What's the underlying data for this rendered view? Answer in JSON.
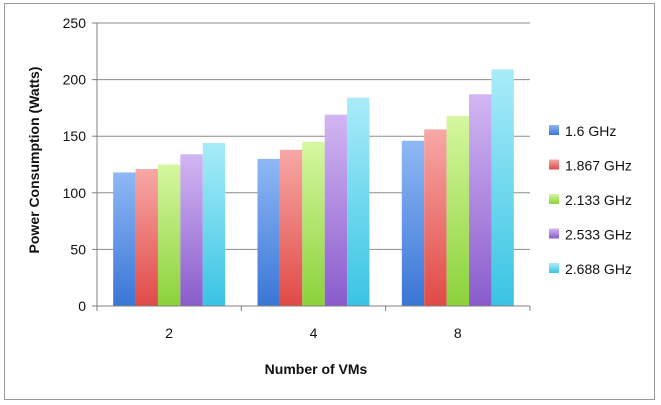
{
  "chart_data": {
    "type": "bar",
    "categories": [
      "2",
      "4",
      "8"
    ],
    "series": [
      {
        "name": "1.6 GHz",
        "values": [
          118,
          130,
          146
        ]
      },
      {
        "name": "1.867 GHz",
        "values": [
          121,
          138,
          156
        ]
      },
      {
        "name": "2.133 GHz",
        "values": [
          125,
          145,
          168
        ]
      },
      {
        "name": "2.533 GHz",
        "values": [
          134,
          169,
          187
        ]
      },
      {
        "name": "2.688 GHz",
        "values": [
          144,
          184,
          209
        ]
      }
    ],
    "xlabel": "Number of VMs",
    "ylabel": "Power Consumption (Watts)",
    "ylim": [
      0,
      250
    ],
    "yticks": [
      0,
      50,
      100,
      150,
      200,
      250
    ],
    "grid": true,
    "legend_position": "right",
    "colors": {
      "1.6 GHz": {
        "light": "#8fb8f5",
        "dark": "#3a76d6"
      },
      "1.867 GHz": {
        "light": "#f7a8a6",
        "dark": "#e04a47"
      },
      "2.133 GHz": {
        "light": "#d6f7a0",
        "dark": "#8bd23a"
      },
      "2.533 GHz": {
        "light": "#d2b6f3",
        "dark": "#8a5ccc"
      },
      "2.688 GHz": {
        "light": "#a9ecf9",
        "dark": "#39c4e3"
      }
    }
  }
}
